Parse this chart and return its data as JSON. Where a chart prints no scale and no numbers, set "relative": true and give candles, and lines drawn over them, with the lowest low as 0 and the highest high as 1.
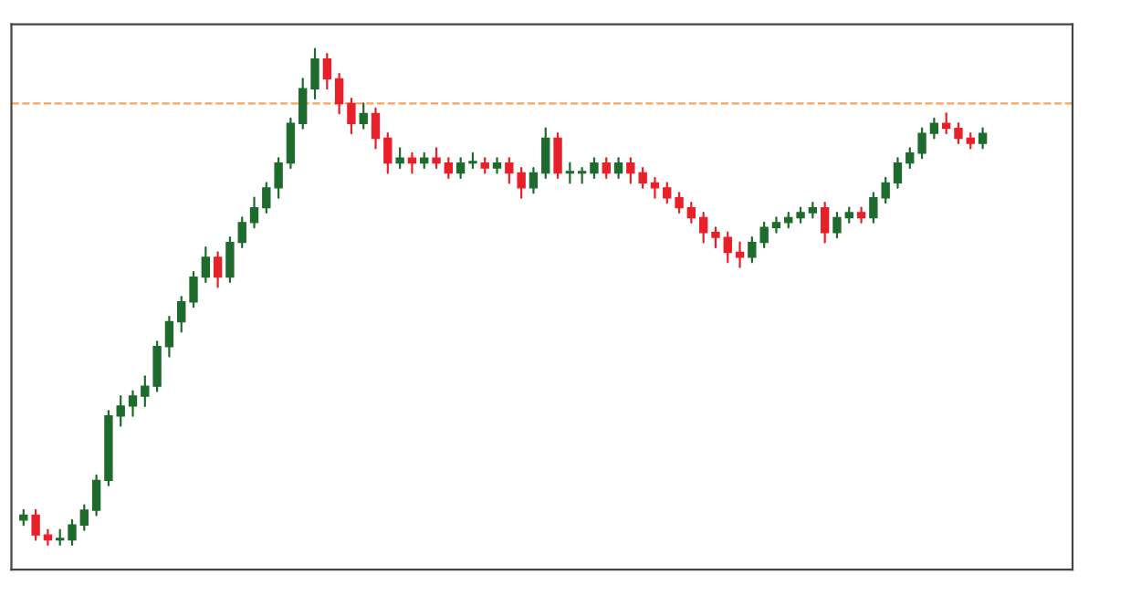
{
  "chart_data": {
    "type": "candlestick",
    "relative": true,
    "categories": [
      null,
      null,
      null,
      null,
      null,
      null,
      null,
      null,
      null,
      null,
      null,
      null,
      null,
      null,
      null,
      null,
      null,
      null,
      null,
      null,
      null,
      null,
      null,
      null,
      null,
      null,
      null,
      null,
      null,
      null,
      null,
      null,
      null,
      null,
      null,
      null,
      null,
      null,
      null,
      null,
      null,
      null,
      null,
      null,
      null,
      null,
      null,
      null,
      null,
      null,
      null,
      null,
      null,
      null,
      null,
      null,
      null,
      null,
      null,
      null,
      null,
      null,
      null,
      null,
      null,
      null,
      null,
      null,
      null,
      null,
      null,
      null,
      null,
      null,
      null,
      null,
      null,
      null,
      null,
      null
    ],
    "ohlc": [
      [
        0.05,
        0.07,
        0.04,
        0.06
      ],
      [
        0.06,
        0.07,
        0.01,
        0.02
      ],
      [
        0.02,
        0.03,
        0.0,
        0.01
      ],
      [
        0.01,
        0.03,
        0.0,
        0.01
      ],
      [
        0.01,
        0.05,
        0.0,
        0.04
      ],
      [
        0.04,
        0.08,
        0.03,
        0.07
      ],
      [
        0.07,
        0.14,
        0.06,
        0.13
      ],
      [
        0.13,
        0.27,
        0.12,
        0.26
      ],
      [
        0.26,
        0.3,
        0.24,
        0.28
      ],
      [
        0.28,
        0.31,
        0.26,
        0.3
      ],
      [
        0.3,
        0.34,
        0.28,
        0.32
      ],
      [
        0.32,
        0.41,
        0.31,
        0.4
      ],
      [
        0.4,
        0.46,
        0.38,
        0.45
      ],
      [
        0.45,
        0.5,
        0.43,
        0.49
      ],
      [
        0.49,
        0.55,
        0.48,
        0.54
      ],
      [
        0.54,
        0.6,
        0.53,
        0.58
      ],
      [
        0.58,
        0.59,
        0.52,
        0.54
      ],
      [
        0.54,
        0.62,
        0.53,
        0.61
      ],
      [
        0.61,
        0.66,
        0.6,
        0.65
      ],
      [
        0.65,
        0.7,
        0.64,
        0.68
      ],
      [
        0.68,
        0.73,
        0.67,
        0.72
      ],
      [
        0.72,
        0.78,
        0.7,
        0.77
      ],
      [
        0.77,
        0.86,
        0.76,
        0.85
      ],
      [
        0.85,
        0.94,
        0.84,
        0.92
      ],
      [
        0.92,
        1.0,
        0.9,
        0.98
      ],
      [
        0.98,
        0.99,
        0.92,
        0.94
      ],
      [
        0.94,
        0.95,
        0.87,
        0.89
      ],
      [
        0.89,
        0.9,
        0.83,
        0.85
      ],
      [
        0.85,
        0.89,
        0.84,
        0.87
      ],
      [
        0.87,
        0.88,
        0.8,
        0.82
      ],
      [
        0.82,
        0.83,
        0.75,
        0.77
      ],
      [
        0.77,
        0.8,
        0.76,
        0.78
      ],
      [
        0.78,
        0.79,
        0.75,
        0.77
      ],
      [
        0.77,
        0.79,
        0.76,
        0.78
      ],
      [
        0.78,
        0.8,
        0.76,
        0.77
      ],
      [
        0.77,
        0.78,
        0.74,
        0.75
      ],
      [
        0.75,
        0.78,
        0.74,
        0.77
      ],
      [
        0.77,
        0.79,
        0.76,
        0.77
      ],
      [
        0.77,
        0.78,
        0.75,
        0.76
      ],
      [
        0.76,
        0.78,
        0.75,
        0.77
      ],
      [
        0.77,
        0.78,
        0.73,
        0.75
      ],
      [
        0.75,
        0.76,
        0.7,
        0.72
      ],
      [
        0.72,
        0.76,
        0.71,
        0.75
      ],
      [
        0.75,
        0.84,
        0.74,
        0.82
      ],
      [
        0.82,
        0.83,
        0.74,
        0.75
      ],
      [
        0.75,
        0.77,
        0.73,
        0.75
      ],
      [
        0.75,
        0.76,
        0.73,
        0.75
      ],
      [
        0.75,
        0.78,
        0.74,
        0.77
      ],
      [
        0.77,
        0.78,
        0.74,
        0.75
      ],
      [
        0.75,
        0.78,
        0.74,
        0.77
      ],
      [
        0.77,
        0.78,
        0.73,
        0.75
      ],
      [
        0.75,
        0.76,
        0.72,
        0.73
      ],
      [
        0.73,
        0.74,
        0.7,
        0.72
      ],
      [
        0.72,
        0.73,
        0.69,
        0.7
      ],
      [
        0.7,
        0.71,
        0.67,
        0.68
      ],
      [
        0.68,
        0.69,
        0.65,
        0.66
      ],
      [
        0.66,
        0.67,
        0.61,
        0.63
      ],
      [
        0.63,
        0.64,
        0.6,
        0.62
      ],
      [
        0.62,
        0.63,
        0.57,
        0.59
      ],
      [
        0.59,
        0.61,
        0.56,
        0.58
      ],
      [
        0.58,
        0.62,
        0.57,
        0.61
      ],
      [
        0.61,
        0.65,
        0.6,
        0.64
      ],
      [
        0.64,
        0.66,
        0.63,
        0.65
      ],
      [
        0.65,
        0.67,
        0.64,
        0.66
      ],
      [
        0.66,
        0.68,
        0.65,
        0.67
      ],
      [
        0.67,
        0.69,
        0.66,
        0.68
      ],
      [
        0.68,
        0.69,
        0.61,
        0.63
      ],
      [
        0.63,
        0.67,
        0.62,
        0.66
      ],
      [
        0.66,
        0.68,
        0.65,
        0.67
      ],
      [
        0.67,
        0.68,
        0.65,
        0.66
      ],
      [
        0.66,
        0.71,
        0.65,
        0.7
      ],
      [
        0.7,
        0.74,
        0.69,
        0.73
      ],
      [
        0.73,
        0.78,
        0.72,
        0.77
      ],
      [
        0.77,
        0.8,
        0.76,
        0.79
      ],
      [
        0.79,
        0.84,
        0.78,
        0.83
      ],
      [
        0.83,
        0.86,
        0.82,
        0.85
      ],
      [
        0.85,
        0.87,
        0.83,
        0.84
      ],
      [
        0.84,
        0.85,
        0.81,
        0.82
      ],
      [
        0.82,
        0.83,
        0.8,
        0.81
      ],
      [
        0.81,
        0.84,
        0.8,
        0.83
      ]
    ],
    "colors": [
      "#1e6b2e",
      "#e8202a",
      "#e8202a",
      "#1e6b2e",
      "#1e6b2e",
      "#1e6b2e",
      "#1e6b2e",
      "#1e6b2e",
      "#1e6b2e",
      "#1e6b2e",
      "#1e6b2e",
      "#1e6b2e",
      "#1e6b2e",
      "#1e6b2e",
      "#1e6b2e",
      "#1e6b2e",
      "#e8202a",
      "#1e6b2e",
      "#1e6b2e",
      "#1e6b2e",
      "#1e6b2e",
      "#1e6b2e",
      "#1e6b2e",
      "#1e6b2e",
      "#1e6b2e",
      "#e8202a",
      "#e8202a",
      "#e8202a",
      "#1e6b2e",
      "#e8202a",
      "#e8202a",
      "#1e6b2e",
      "#e8202a",
      "#1e6b2e",
      "#e8202a",
      "#e8202a",
      "#1e6b2e",
      "#1e6b2e",
      "#e8202a",
      "#1e6b2e",
      "#e8202a",
      "#e8202a",
      "#1e6b2e",
      "#1e6b2e",
      "#e8202a",
      "#1e6b2e",
      "#1e6b2e",
      "#1e6b2e",
      "#e8202a",
      "#1e6b2e",
      "#e8202a",
      "#e8202a",
      "#e8202a",
      "#e8202a",
      "#e8202a",
      "#e8202a",
      "#e8202a",
      "#e8202a",
      "#e8202a",
      "#e8202a",
      "#1e6b2e",
      "#1e6b2e",
      "#1e6b2e",
      "#1e6b2e",
      "#1e6b2e",
      "#1e6b2e",
      "#e8202a",
      "#1e6b2e",
      "#1e6b2e",
      "#e8202a",
      "#1e6b2e",
      "#1e6b2e",
      "#1e6b2e",
      "#1e6b2e",
      "#1e6b2e",
      "#1e6b2e",
      "#e8202a",
      "#e8202a",
      "#e8202a",
      "#1e6b2e"
    ],
    "ref_lines": [
      {
        "axis": "y",
        "value": 0.89,
        "color": "#f4a460",
        "line_style": "dashed"
      }
    ],
    "grid": false
  }
}
